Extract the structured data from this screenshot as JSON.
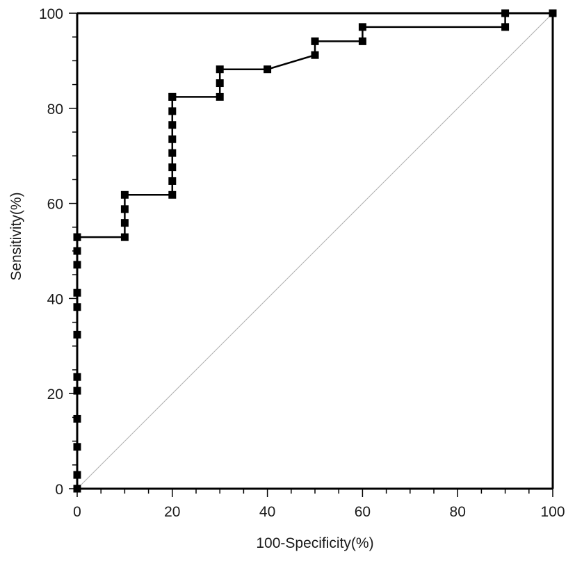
{
  "chart_data": {
    "type": "line",
    "title": "",
    "xlabel": "100-Specificity(%)",
    "ylabel": "Sensitivity(%)",
    "xlim": [
      0,
      100
    ],
    "ylim": [
      0,
      100
    ],
    "x_ticks": [
      0,
      20,
      40,
      60,
      80,
      100
    ],
    "y_ticks": [
      0,
      20,
      40,
      60,
      80,
      100
    ],
    "x_tick_labels": [
      "0",
      "20",
      "40",
      "60",
      "80",
      "100"
    ],
    "y_tick_labels": [
      "0",
      "20",
      "40",
      "60",
      "80",
      "100"
    ],
    "grid": false,
    "legend": "none",
    "series": [
      {
        "role": "roc-curve",
        "color": "#000000",
        "marker": "square",
        "x": [
          0,
          0,
          0,
          0,
          0,
          0,
          0,
          0,
          0,
          0,
          0,
          0,
          0,
          10,
          10,
          10,
          10,
          20,
          20,
          20,
          20,
          20,
          20,
          20,
          20,
          20,
          30,
          30,
          30,
          40,
          50,
          50,
          60,
          60,
          90,
          90,
          100
        ],
        "y": [
          0,
          2.9,
          8.8,
          14.7,
          20.6,
          23.5,
          32.4,
          38.2,
          41.2,
          47.1,
          50.0,
          52.9,
          52.9,
          52.9,
          55.9,
          58.8,
          61.8,
          61.8,
          64.7,
          67.6,
          70.6,
          73.5,
          76.5,
          79.4,
          82.4,
          82.4,
          82.4,
          85.3,
          88.2,
          88.2,
          91.2,
          94.1,
          94.1,
          97.1,
          97.1,
          100,
          100
        ]
      },
      {
        "role": "reference-diagonal",
        "color": "#b0b0b0",
        "x": [
          0,
          100
        ],
        "y": [
          0,
          100
        ]
      }
    ]
  }
}
